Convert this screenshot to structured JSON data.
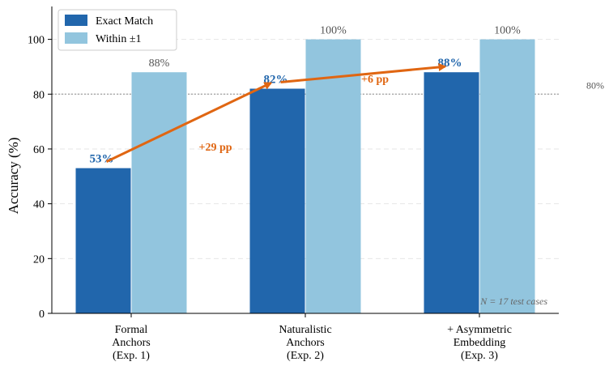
{
  "chart_data": {
    "type": "bar",
    "title": "",
    "xlabel": "",
    "ylabel": "Accuracy (%)",
    "ylim": [
      0,
      112
    ],
    "yticks": [
      "0",
      "20",
      "40",
      "60",
      "80",
      "100"
    ],
    "categories": [
      [
        "Formal",
        "Anchors",
        "(Exp. 1)"
      ],
      [
        "Naturalistic",
        "Anchors",
        "(Exp. 2)"
      ],
      [
        "+ Asymmetric",
        "Embedding",
        "(Exp. 3)"
      ]
    ],
    "series": [
      {
        "name": "Exact Match",
        "color": "#2166ac",
        "values": [
          53,
          82,
          88
        ],
        "labels": [
          "53%",
          "82%",
          "88%"
        ]
      },
      {
        "name": "Within ±1",
        "color": "#92c5de",
        "values": [
          88,
          100,
          100
        ],
        "labels": [
          "88%",
          "100%",
          "100%"
        ]
      }
    ],
    "reference_line": {
      "value": 80,
      "label": "80%"
    },
    "improvements": [
      {
        "from": 0,
        "to": 1,
        "label": "+29 pp"
      },
      {
        "from": 1,
        "to": 2,
        "label": "+6 pp"
      }
    ],
    "arrow_color": "#e06612",
    "note_label": "N = 17 test cases",
    "legend": "upper-left",
    "grid": "dashed horizontal"
  }
}
